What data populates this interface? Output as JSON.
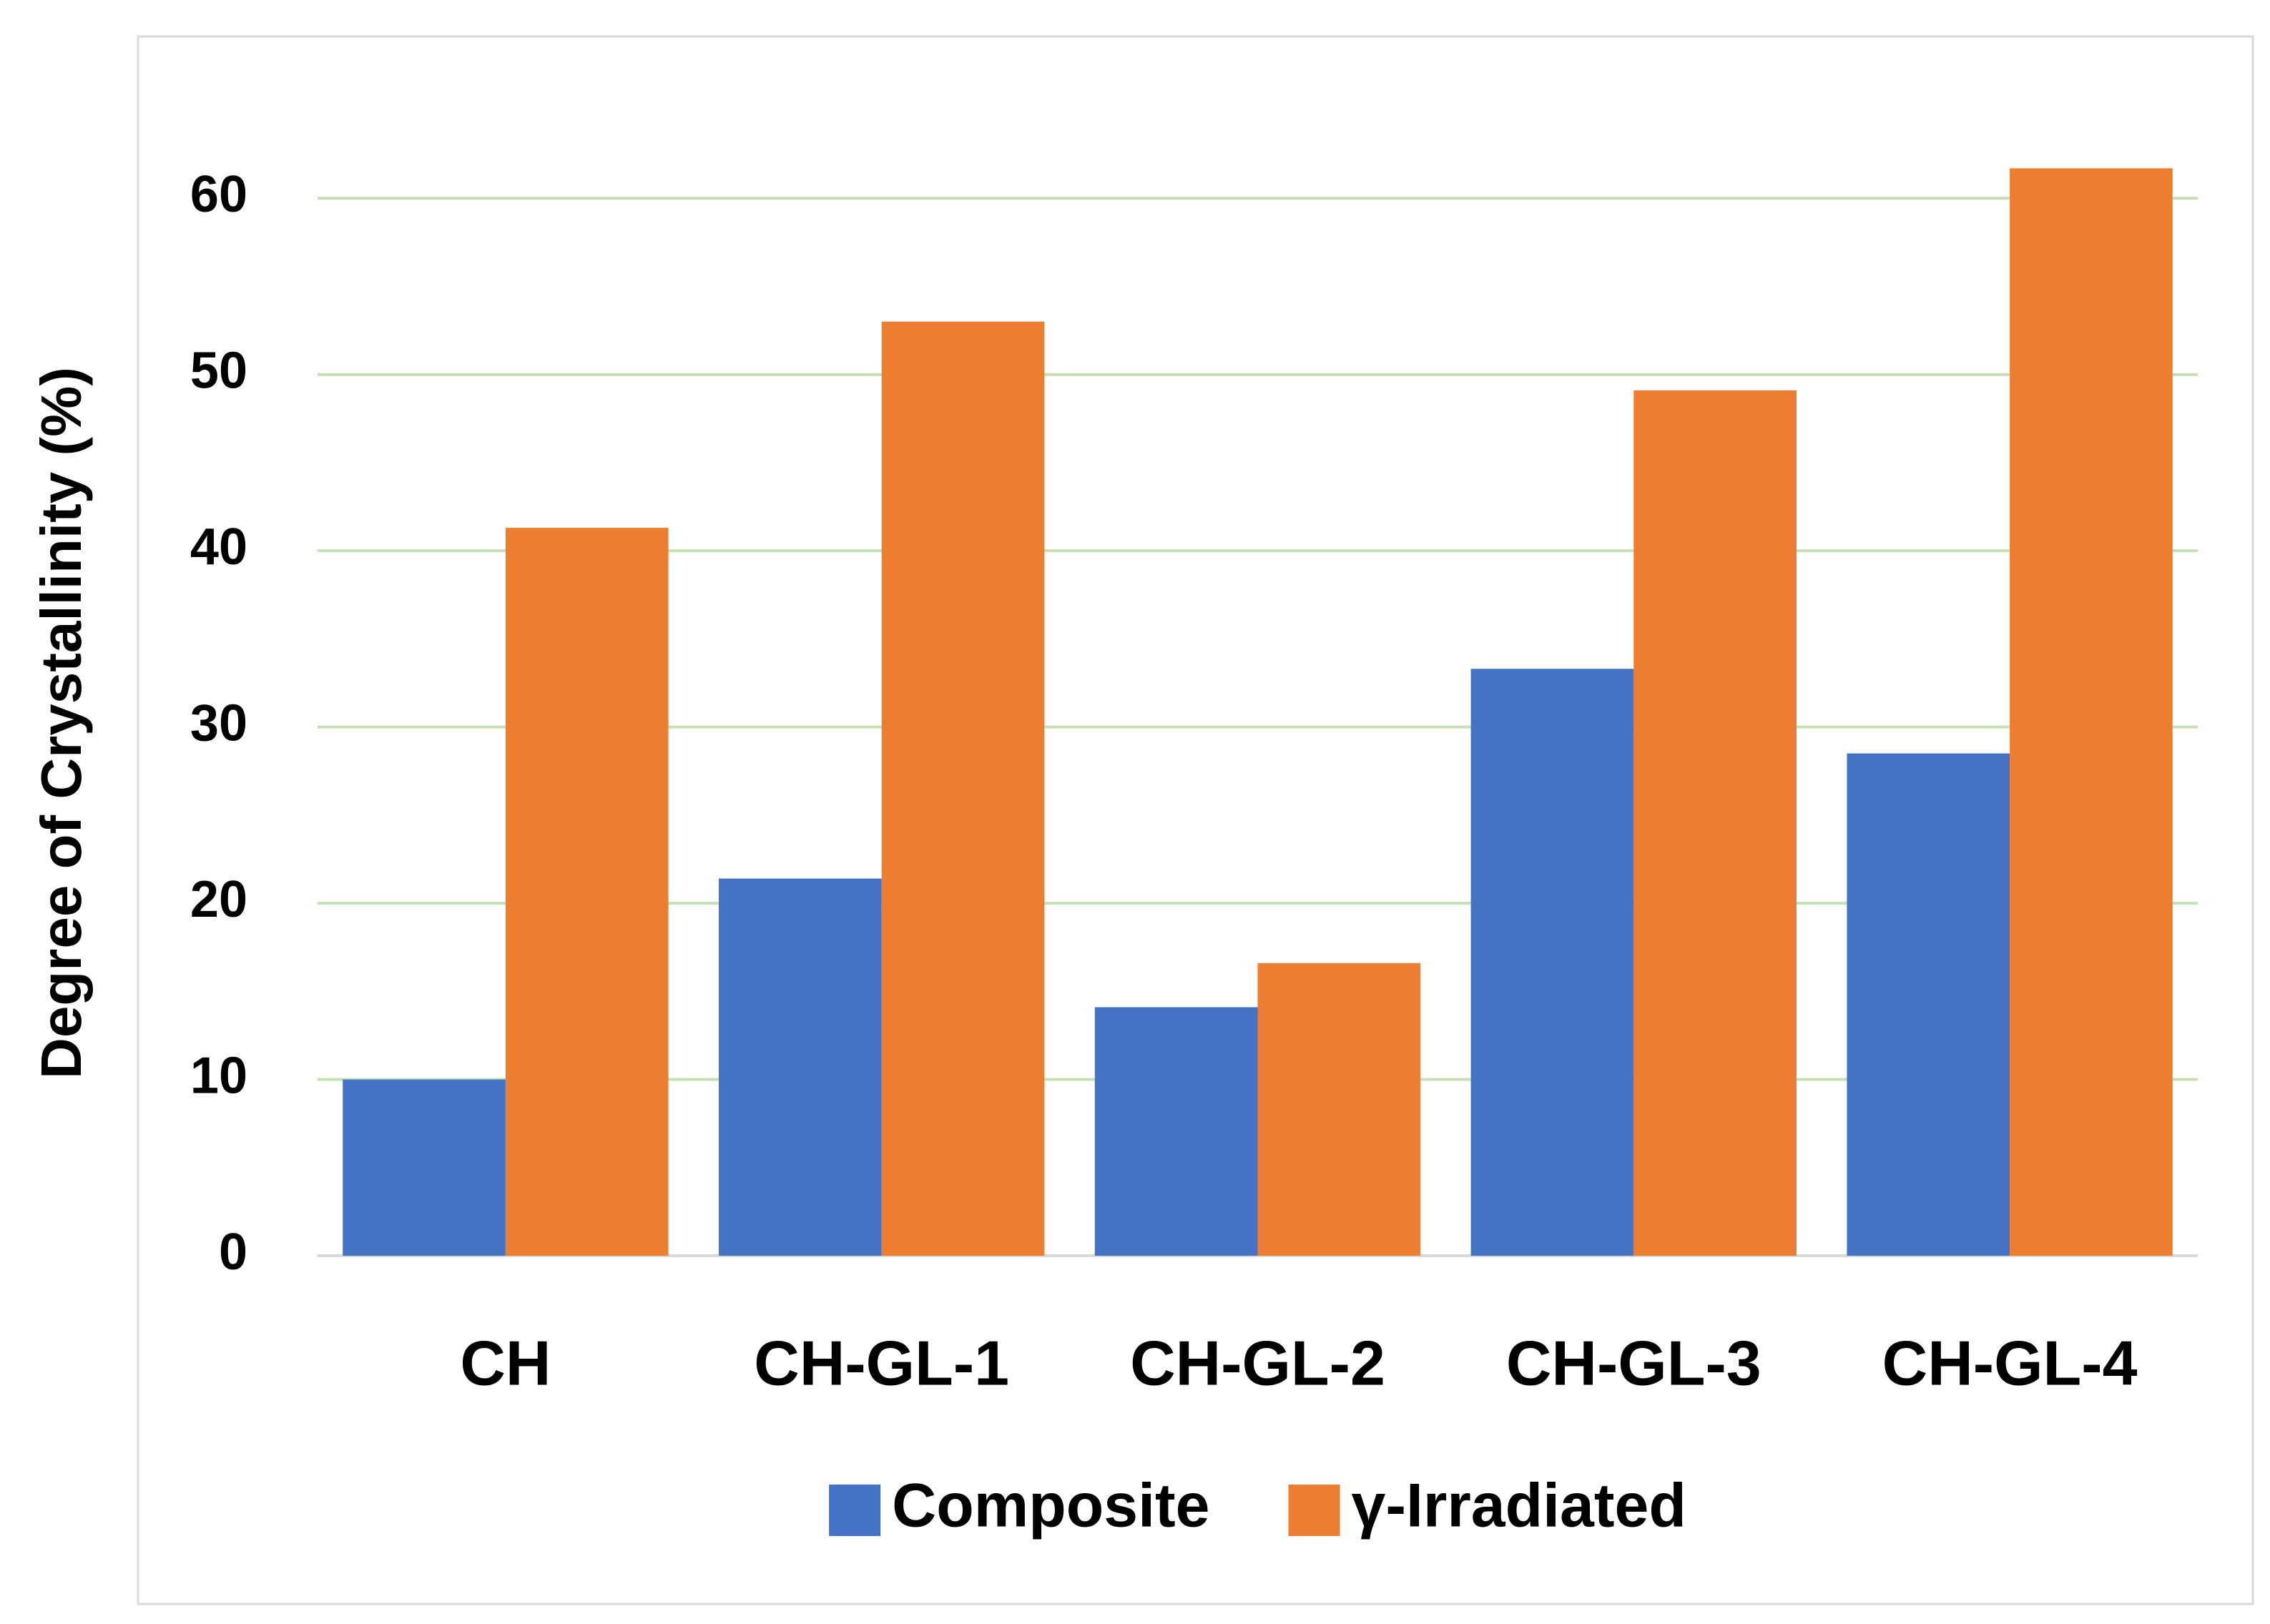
{
  "chart_data": {
    "type": "bar",
    "y_label": "Degree of Crystallinity (%)",
    "categories": [
      "CH",
      "CH-GL-1",
      "CH-GL-2",
      "CH-GL-3",
      "CH-GL-4"
    ],
    "series": [
      {
        "name": "Composite",
        "color": "#4472c4",
        "values": [
          10.0,
          21.4,
          14.1,
          33.3,
          28.5
        ]
      },
      {
        "name": "γ-Irradiated",
        "color": "#ed7d31",
        "values": [
          41.3,
          53.0,
          16.6,
          49.1,
          61.7
        ]
      }
    ],
    "ylim": [
      0,
      65
    ],
    "yticks": [
      0,
      10,
      20,
      30,
      40,
      50,
      60
    ],
    "grid": true,
    "legend": "bottom"
  }
}
